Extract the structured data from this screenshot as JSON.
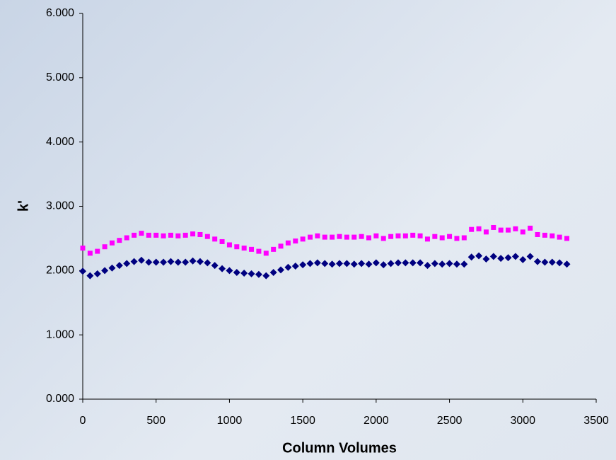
{
  "chart_data": {
    "type": "scatter",
    "x_label": "Column Volumes",
    "y_label": "k'",
    "x": [
      0,
      50,
      100,
      150,
      200,
      250,
      300,
      350,
      400,
      450,
      500,
      550,
      600,
      650,
      700,
      750,
      800,
      850,
      900,
      950,
      1000,
      1050,
      1100,
      1150,
      1200,
      1250,
      1300,
      1350,
      1400,
      1450,
      1500,
      1550,
      1600,
      1650,
      1700,
      1750,
      1800,
      1850,
      1900,
      1950,
      2000,
      2050,
      2100,
      2150,
      2200,
      2250,
      2300,
      2350,
      2400,
      2450,
      2500,
      2550,
      2600,
      2650,
      2700,
      2750,
      2800,
      2850,
      2900,
      2950,
      3000,
      3050,
      3100,
      3150,
      3200,
      3250,
      3300
    ],
    "series": [
      {
        "color": "#ff00ff",
        "marker": "square",
        "values": [
          2.35,
          2.27,
          2.3,
          2.37,
          2.43,
          2.47,
          2.51,
          2.55,
          2.58,
          2.55,
          2.55,
          2.54,
          2.55,
          2.54,
          2.55,
          2.57,
          2.56,
          2.53,
          2.49,
          2.45,
          2.4,
          2.37,
          2.35,
          2.33,
          2.3,
          2.27,
          2.33,
          2.38,
          2.43,
          2.46,
          2.49,
          2.52,
          2.54,
          2.52,
          2.52,
          2.53,
          2.52,
          2.52,
          2.53,
          2.51,
          2.54,
          2.5,
          2.53,
          2.54,
          2.54,
          2.55,
          2.54,
          2.49,
          2.53,
          2.51,
          2.53,
          2.5,
          2.51,
          2.64,
          2.65,
          2.6,
          2.67,
          2.63,
          2.63,
          2.65,
          2.6,
          2.66,
          2.56,
          2.55,
          2.54,
          2.52,
          2.5
        ]
      },
      {
        "color": "#000080",
        "marker": "diamond",
        "values": [
          1.99,
          1.92,
          1.95,
          2.0,
          2.04,
          2.08,
          2.11,
          2.14,
          2.16,
          2.13,
          2.13,
          2.13,
          2.14,
          2.13,
          2.13,
          2.15,
          2.14,
          2.12,
          2.08,
          2.03,
          2.0,
          1.97,
          1.96,
          1.95,
          1.94,
          1.92,
          1.97,
          2.01,
          2.05,
          2.07,
          2.09,
          2.11,
          2.12,
          2.11,
          2.1,
          2.11,
          2.11,
          2.1,
          2.11,
          2.1,
          2.12,
          2.09,
          2.11,
          2.12,
          2.12,
          2.12,
          2.12,
          2.08,
          2.11,
          2.1,
          2.11,
          2.1,
          2.1,
          2.21,
          2.23,
          2.18,
          2.22,
          2.19,
          2.2,
          2.22,
          2.17,
          2.22,
          2.14,
          2.13,
          2.13,
          2.12,
          2.1
        ]
      }
    ],
    "xlim": [
      0,
      3500
    ],
    "xticks": [
      0,
      500,
      1000,
      1500,
      2000,
      2500,
      3000,
      3500
    ],
    "ylim": [
      0,
      6
    ],
    "yticks": [
      {
        "value": 0,
        "label": "0.000"
      },
      {
        "value": 1,
        "label": "1.000"
      },
      {
        "value": 2,
        "label": "2.000"
      },
      {
        "value": 3,
        "label": "3.000"
      },
      {
        "value": 4,
        "label": "4.000"
      },
      {
        "value": 5,
        "label": "5.000"
      },
      {
        "value": 6,
        "label": "6.000"
      }
    ],
    "grid": false
  }
}
